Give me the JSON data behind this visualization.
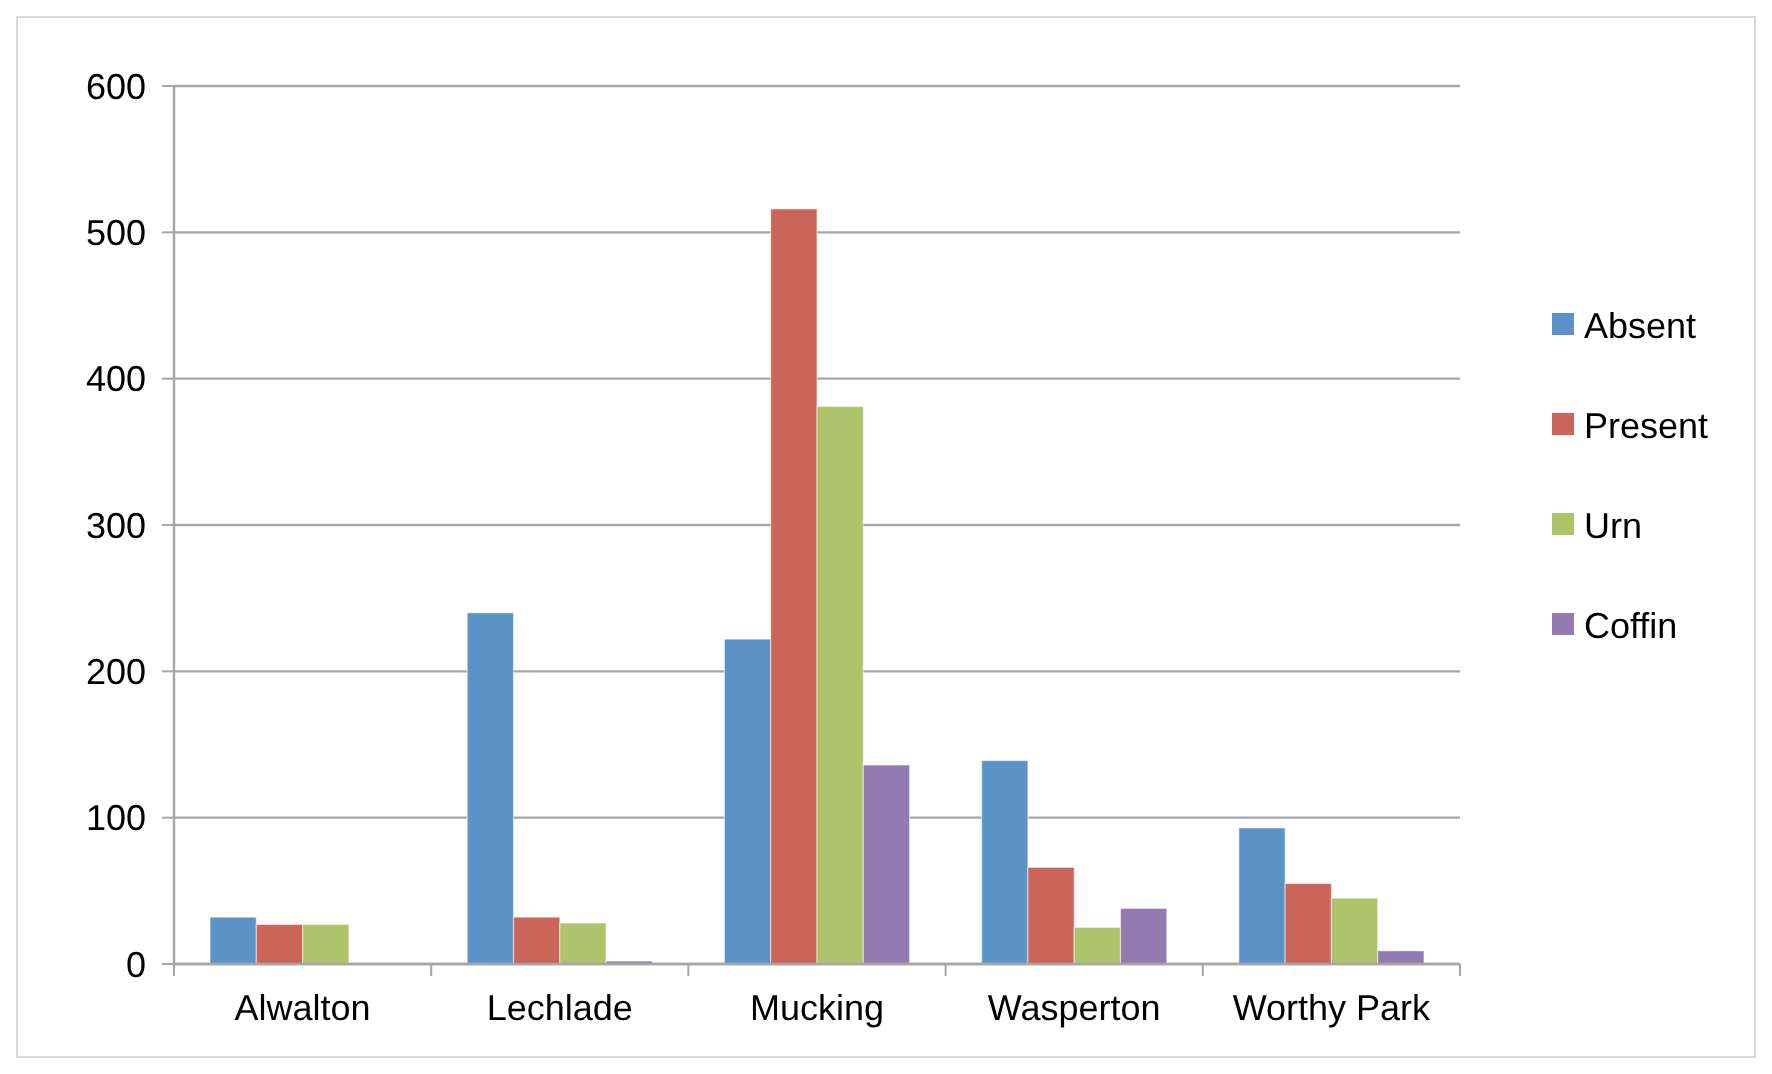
{
  "chart_data": {
    "type": "bar",
    "categories": [
      "Alwalton",
      "Lechlade",
      "Mucking",
      "Wasperton",
      "Worthy Park"
    ],
    "series": [
      {
        "name": "Absent",
        "color": "#5b93c7",
        "values": [
          32,
          240,
          222,
          139,
          93
        ]
      },
      {
        "name": "Present",
        "color": "#cb6459",
        "values": [
          27,
          32,
          516,
          66,
          55
        ]
      },
      {
        "name": "Urn",
        "color": "#adc46b",
        "values": [
          27,
          28,
          381,
          25,
          45
        ]
      },
      {
        "name": "Coffin",
        "color": "#917bb0",
        "values": [
          0,
          2,
          136,
          38,
          9
        ]
      }
    ],
    "ylim": [
      0,
      600
    ],
    "yticks": [
      0,
      100,
      200,
      300,
      400,
      500,
      600
    ],
    "grid": "y",
    "legend": "right"
  }
}
